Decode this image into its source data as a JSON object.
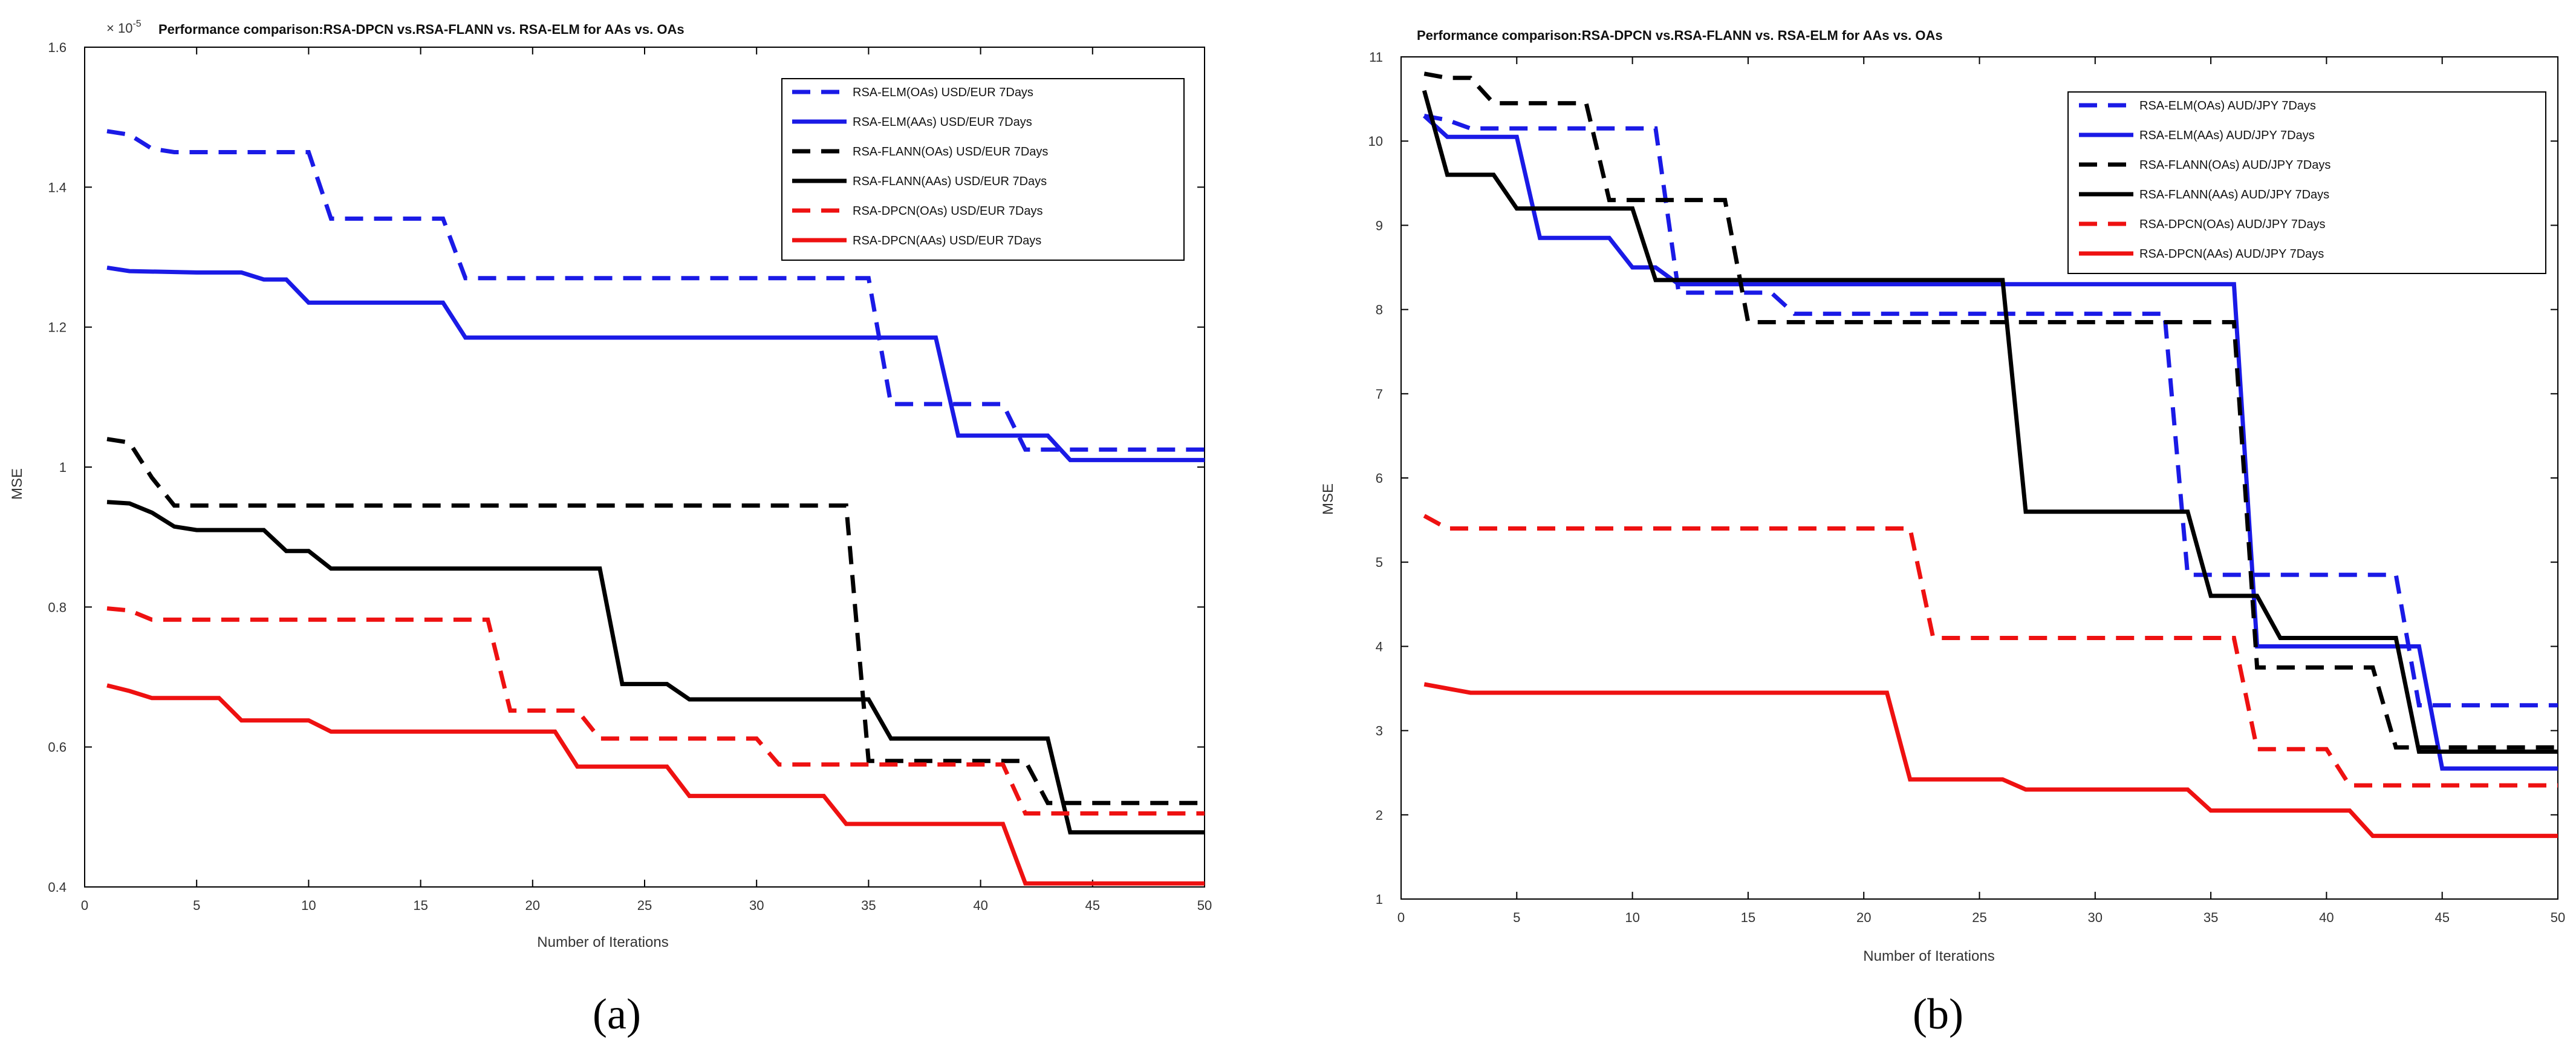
{
  "figure": {
    "panel_a_label": "(a)",
    "panel_b_label": "(b)"
  },
  "colors": {
    "blue": "#1a1ae6",
    "black": "#000000",
    "red": "#ee1111"
  },
  "chart_data": [
    {
      "type": "line",
      "title": "Performance comparison:RSA-DPCN vs.RSA-FLANN vs. RSA-ELM for AAs vs. OAs",
      "xlabel": "Number of Iterations",
      "ylabel": "MSE",
      "xlim": [
        0,
        50
      ],
      "ylim": [
        0.4,
        1.6
      ],
      "y_scale_note": "× 10^-5",
      "y_scale_base": "× 10",
      "y_scale_exp": "-5",
      "x_ticks": [
        "0",
        "5",
        "10",
        "15",
        "20",
        "25",
        "30",
        "35",
        "40",
        "45",
        "50"
      ],
      "y_ticks": [
        "0.4",
        "0.6",
        "0.8",
        "1",
        "1.2",
        "1.4",
        "1.6"
      ],
      "grid": false,
      "legend_position": "top-right",
      "series": [
        {
          "name": "RSA-ELM(OAs) USD/EUR 7Days",
          "color": "blue",
          "dashed": true,
          "points": [
            [
              1,
              1.48
            ],
            [
              2,
              1.475
            ],
            [
              3,
              1.455
            ],
            [
              4,
              1.45
            ],
            [
              10,
              1.45
            ],
            [
              11,
              1.355
            ],
            [
              16,
              1.355
            ],
            [
              17,
              1.27
            ],
            [
              35,
              1.27
            ],
            [
              36,
              1.09
            ],
            [
              41,
              1.09
            ],
            [
              42,
              1.025
            ],
            [
              50,
              1.025
            ]
          ]
        },
        {
          "name": "RSA-ELM(AAs) USD/EUR 7Days",
          "color": "blue",
          "dashed": false,
          "points": [
            [
              1,
              1.285
            ],
            [
              2,
              1.28
            ],
            [
              5,
              1.278
            ],
            [
              7,
              1.278
            ],
            [
              8,
              1.268
            ],
            [
              9,
              1.268
            ],
            [
              10,
              1.235
            ],
            [
              16,
              1.235
            ],
            [
              17,
              1.185
            ],
            [
              38,
              1.185
            ],
            [
              39,
              1.045
            ],
            [
              43,
              1.045
            ],
            [
              44,
              1.01
            ],
            [
              50,
              1.01
            ]
          ]
        },
        {
          "name": "RSA-FLANN(OAs) USD/EUR 7Days",
          "color": "black",
          "dashed": true,
          "points": [
            [
              1,
              1.04
            ],
            [
              2,
              1.035
            ],
            [
              3,
              0.985
            ],
            [
              4,
              0.945
            ],
            [
              34,
              0.945
            ],
            [
              35,
              0.58
            ],
            [
              42,
              0.58
            ],
            [
              43,
              0.52
            ],
            [
              50,
              0.52
            ]
          ]
        },
        {
          "name": "RSA-FLANN(AAs) USD/EUR 7Days",
          "color": "black",
          "dashed": false,
          "points": [
            [
              1,
              0.95
            ],
            [
              2,
              0.948
            ],
            [
              3,
              0.935
            ],
            [
              4,
              0.915
            ],
            [
              5,
              0.91
            ],
            [
              8,
              0.91
            ],
            [
              9,
              0.88
            ],
            [
              10,
              0.88
            ],
            [
              11,
              0.855
            ],
            [
              23,
              0.855
            ],
            [
              24,
              0.69
            ],
            [
              26,
              0.69
            ],
            [
              27,
              0.668
            ],
            [
              35,
              0.668
            ],
            [
              36,
              0.612
            ],
            [
              43,
              0.612
            ],
            [
              44,
              0.478
            ],
            [
              50,
              0.478
            ]
          ]
        },
        {
          "name": "RSA-DPCN(OAs) USD/EUR 7Days",
          "color": "red",
          "dashed": true,
          "points": [
            [
              1,
              0.798
            ],
            [
              2,
              0.795
            ],
            [
              3,
              0.782
            ],
            [
              18,
              0.782
            ],
            [
              19,
              0.652
            ],
            [
              22,
              0.652
            ],
            [
              23,
              0.612
            ],
            [
              30,
              0.612
            ],
            [
              31,
              0.575
            ],
            [
              41,
              0.575
            ],
            [
              42,
              0.505
            ],
            [
              50,
              0.505
            ]
          ]
        },
        {
          "name": "RSA-DPCN(AAs) USD/EUR 7Days",
          "color": "red",
          "dashed": false,
          "points": [
            [
              1,
              0.688
            ],
            [
              2,
              0.68
            ],
            [
              3,
              0.67
            ],
            [
              6,
              0.67
            ],
            [
              7,
              0.638
            ],
            [
              10,
              0.638
            ],
            [
              11,
              0.622
            ],
            [
              21,
              0.622
            ],
            [
              22,
              0.572
            ],
            [
              26,
              0.572
            ],
            [
              27,
              0.53
            ],
            [
              33,
              0.53
            ],
            [
              34,
              0.49
            ],
            [
              41,
              0.49
            ],
            [
              42,
              0.405
            ],
            [
              50,
              0.405
            ]
          ]
        }
      ]
    },
    {
      "type": "line",
      "title": "Performance comparison:RSA-DPCN vs.RSA-FLANN vs. RSA-ELM for AAs vs. OAs",
      "xlabel": "Number of Iterations",
      "ylabel": "MSE",
      "xlim": [
        0,
        50
      ],
      "ylim": [
        1,
        11
      ],
      "x_ticks": [
        "0",
        "5",
        "10",
        "15",
        "20",
        "25",
        "30",
        "35",
        "40",
        "45",
        "50"
      ],
      "y_ticks": [
        "1",
        "2",
        "3",
        "4",
        "5",
        "6",
        "7",
        "8",
        "9",
        "10",
        "11"
      ],
      "grid": false,
      "legend_position": "top-right",
      "series": [
        {
          "name": "RSA-ELM(OAs) AUD/JPY 7Days",
          "color": "blue",
          "dashed": true,
          "points": [
            [
              1,
              10.3
            ],
            [
              2,
              10.25
            ],
            [
              3,
              10.15
            ],
            [
              11,
              10.15
            ],
            [
              12,
              8.2
            ],
            [
              16,
              8.2
            ],
            [
              17,
              7.95
            ],
            [
              33,
              7.95
            ],
            [
              34,
              4.85
            ],
            [
              43,
              4.85
            ],
            [
              44,
              3.3
            ],
            [
              50,
              3.3
            ]
          ]
        },
        {
          "name": "RSA-ELM(AAs) AUD/JPY 7Days",
          "color": "blue",
          "dashed": false,
          "points": [
            [
              1,
              10.3
            ],
            [
              2,
              10.05
            ],
            [
              5,
              10.05
            ],
            [
              6,
              8.85
            ],
            [
              9,
              8.85
            ],
            [
              10,
              8.5
            ],
            [
              11,
              8.5
            ],
            [
              12,
              8.3
            ],
            [
              36,
              8.3
            ],
            [
              37,
              4.0
            ],
            [
              44,
              4.0
            ],
            [
              45,
              2.55
            ],
            [
              50,
              2.55
            ]
          ]
        },
        {
          "name": "RSA-FLANN(OAs) AUD/JPY 7Days",
          "color": "black",
          "dashed": true,
          "points": [
            [
              1,
              10.8
            ],
            [
              2,
              10.75
            ],
            [
              3,
              10.75
            ],
            [
              4,
              10.45
            ],
            [
              8,
              10.45
            ],
            [
              9,
              9.3
            ],
            [
              14,
              9.3
            ],
            [
              15,
              7.85
            ],
            [
              36,
              7.85
            ],
            [
              37,
              3.75
            ],
            [
              42,
              3.75
            ],
            [
              43,
              2.8
            ],
            [
              50,
              2.8
            ]
          ]
        },
        {
          "name": "RSA-FLANN(AAs) AUD/JPY 7Days",
          "color": "black",
          "dashed": false,
          "points": [
            [
              1,
              10.6
            ],
            [
              2,
              9.6
            ],
            [
              4,
              9.6
            ],
            [
              5,
              9.2
            ],
            [
              10,
              9.2
            ],
            [
              11,
              8.35
            ],
            [
              26,
              8.35
            ],
            [
              27,
              5.6
            ],
            [
              34,
              5.6
            ],
            [
              35,
              4.6
            ],
            [
              37,
              4.6
            ],
            [
              38,
              4.1
            ],
            [
              43,
              4.1
            ],
            [
              44,
              2.75
            ],
            [
              50,
              2.75
            ]
          ]
        },
        {
          "name": "RSA-DPCN(OAs) AUD/JPY 7Days",
          "color": "red",
          "dashed": true,
          "points": [
            [
              1,
              5.55
            ],
            [
              2,
              5.4
            ],
            [
              22,
              5.4
            ],
            [
              23,
              4.1
            ],
            [
              36,
              4.1
            ],
            [
              37,
              2.78
            ],
            [
              40,
              2.78
            ],
            [
              41,
              2.35
            ],
            [
              50,
              2.35
            ]
          ]
        },
        {
          "name": "RSA-DPCN(AAs) AUD/JPY 7Days",
          "color": "red",
          "dashed": false,
          "points": [
            [
              1,
              3.55
            ],
            [
              2,
              3.5
            ],
            [
              3,
              3.45
            ],
            [
              21,
              3.45
            ],
            [
              22,
              2.42
            ],
            [
              26,
              2.42
            ],
            [
              27,
              2.3
            ],
            [
              34,
              2.3
            ],
            [
              35,
              2.05
            ],
            [
              41,
              2.05
            ],
            [
              42,
              1.75
            ],
            [
              50,
              1.75
            ]
          ]
        }
      ]
    }
  ]
}
